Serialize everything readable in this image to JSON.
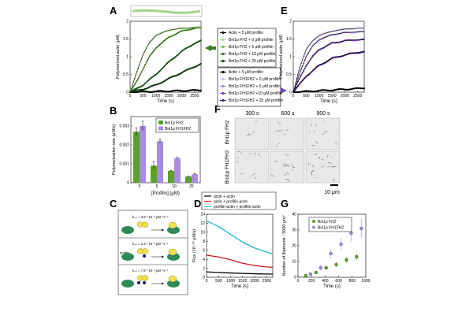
{
  "panels": {
    "A": "A",
    "B": "B",
    "C": "C",
    "D": "D",
    "E": "E",
    "F": "F",
    "G": "G"
  },
  "colors": {
    "green_dark": "#1b4d1b",
    "green_mid": "#2f7a2f",
    "green_light": "#6fbf4a",
    "green_pale": "#a8dc8c",
    "purple_dark": "#3c1a78",
    "purple_mid": "#6a3fb4",
    "purple_light": "#a48ad6",
    "purple_pale": "#cfc2ea",
    "bar_green": "#5aa02c",
    "bar_purple": "#a98be0",
    "cyan": "#19b6d6",
    "red": "#c8141e",
    "black": "#000000",
    "arrow_green": "#3a7d20",
    "arrow_purple": "#7b4bd0"
  },
  "legend_A": [
    {
      "label": "Actin + 5 μM profilin",
      "color": "#000000"
    },
    {
      "label": "Bni1p FH2 + 0 μM profilin",
      "color": "#a8dc8c"
    },
    {
      "label": "Bni1p FH2 + 5 μM profilin",
      "color": "#6fbf4a"
    },
    {
      "label": "Bni1p FH2 + 10 μM profilin",
      "color": "#2f7a2f"
    },
    {
      "label": "Bni1p FH2 + 25 μM profilin",
      "color": "#1b4d1b"
    }
  ],
  "legend_E": [
    {
      "label": "Actin + 5 μM profilin",
      "color": "#000000"
    },
    {
      "label": "Bni1p FH1FH2 + 0 μM profilin",
      "color": "#cfc2ea"
    },
    {
      "label": "Bni1p FH1FH2 + 5 μM profilin",
      "color": "#a48ad6"
    },
    {
      "label": "Bni1p FH1FH2 +10 μM profilin",
      "color": "#6a3fb4"
    },
    {
      "label": "Bni1p FH1FH2 + 25 μM profilin",
      "color": "#3c1a78"
    }
  ],
  "chart_data": [
    {
      "panel": "A",
      "type": "line",
      "xlabel": "Time (s)",
      "ylabel": "Polymerized actin (μM)",
      "xlim": [
        0,
        2750
      ],
      "ylim": [
        0,
        2
      ],
      "xticks": [
        "0",
        "500",
        "1000",
        "1500",
        "2000",
        "2500"
      ],
      "yticks": [
        "0",
        "0.5",
        "1",
        "1.5",
        "2"
      ],
      "series": [
        {
          "name": "Actin + 5 μM profilin",
          "x": [
            0,
            500,
            1000,
            1500,
            2000,
            2500,
            2750
          ],
          "y": [
            0,
            0.01,
            0.02,
            0.03,
            0.04,
            0.05,
            0.06
          ]
        },
        {
          "name": "Bni1p FH2 + 0 μM profilin",
          "x": [
            0,
            250,
            500,
            750,
            1000,
            1500,
            2000,
            2500,
            2750
          ],
          "y": [
            0,
            0.55,
            1.05,
            1.4,
            1.6,
            1.75,
            1.8,
            1.82,
            1.83
          ]
        },
        {
          "name": "Bni1p FH2 + 5 μM profilin",
          "x": [
            0,
            250,
            500,
            750,
            1000,
            1500,
            2000,
            2500,
            2750
          ],
          "y": [
            0,
            0.3,
            0.65,
            1.0,
            1.25,
            1.55,
            1.72,
            1.8,
            1.82
          ]
        },
        {
          "name": "Bni1p FH2 + 10 μM profilin",
          "x": [
            0,
            500,
            1000,
            1500,
            2000,
            2500,
            2750
          ],
          "y": [
            0,
            0.2,
            0.5,
            0.85,
            1.15,
            1.38,
            1.45
          ]
        },
        {
          "name": "Bni1p FH2 + 25 μM profilin",
          "x": [
            0,
            500,
            1000,
            1500,
            2000,
            2500,
            2750
          ],
          "y": [
            0,
            0.08,
            0.2,
            0.38,
            0.55,
            0.72,
            0.8
          ]
        }
      ]
    },
    {
      "panel": "B",
      "type": "bar",
      "xlabel": "[Profilin] (μM)",
      "ylabel": "Polymerization rate (μM/s)",
      "ylim": [
        0,
        0.0035
      ],
      "yticks": [
        "0",
        "0.001",
        "0.002",
        "0.003"
      ],
      "categories": [
        "0",
        "5",
        "10",
        "25"
      ],
      "series": [
        {
          "name": "Bni1p FH2",
          "values": [
            0.0027,
            0.0009,
            0.00063,
            0.00033
          ],
          "errors": [
            0.0002,
            0.0002,
            3e-05,
            3e-05
          ]
        },
        {
          "name": "Bni1p FH1FH2",
          "values": [
            0.003,
            0.0022,
            0.0013,
            0.00045
          ],
          "errors": [
            0.00025,
            0.0001,
            5e-05,
            3e-05
          ]
        }
      ]
    },
    {
      "panel": "D",
      "type": "line",
      "xlabel": "Time (s)",
      "ylabel": "Flux (10⁻¹⁰ μM/s)",
      "xlim": [
        0,
        2750
      ],
      "ylim": [
        0,
        14
      ],
      "xticks": [
        "0",
        "500",
        "1000",
        "1500",
        "2000",
        "2500"
      ],
      "yticks": [
        "0",
        "2",
        "4",
        "6",
        "8",
        "10",
        "12",
        "14"
      ],
      "series": [
        {
          "name": "actin + actin",
          "x": [
            0,
            500,
            1000,
            1500,
            2000,
            2500,
            2750
          ],
          "y": [
            1.2,
            1.05,
            0.95,
            0.85,
            0.78,
            0.72,
            0.7
          ]
        },
        {
          "name": "actin + profilin-actin",
          "x": [
            0,
            500,
            1000,
            1500,
            2000,
            2500,
            2750
          ],
          "y": [
            4.9,
            4.5,
            3.9,
            3.1,
            2.6,
            2.3,
            2.2
          ]
        },
        {
          "name": "profilin-actin + profilin-actin",
          "x": [
            0,
            500,
            1000,
            1500,
            2000,
            2500,
            2750
          ],
          "y": [
            12.5,
            11.3,
            9.5,
            7.8,
            6.5,
            5.6,
            5.2
          ]
        }
      ]
    },
    {
      "panel": "E",
      "type": "line",
      "xlabel": "Time (s)",
      "ylabel": "Polymerized actin (μM)",
      "xlim": [
        0,
        2750
      ],
      "ylim": [
        0,
        2
      ],
      "xticks": [
        "0",
        "500",
        "1000",
        "1500",
        "2000",
        "2500"
      ],
      "yticks": [
        "0",
        "0.5",
        "1",
        "1.5",
        "2"
      ],
      "series": [
        {
          "name": "Actin + 5 μM profilin",
          "x": [
            0,
            500,
            1000,
            1500,
            2000,
            2500,
            2750
          ],
          "y": [
            0,
            0.02,
            0.04,
            0.06,
            0.08,
            0.1,
            0.12
          ]
        },
        {
          "name": "Bni1p FH1FH2 + 0 μM profilin",
          "x": [
            0,
            250,
            500,
            750,
            1000,
            1500,
            2000,
            2500,
            2750
          ],
          "y": [
            0,
            0.7,
            1.2,
            1.45,
            1.6,
            1.72,
            1.78,
            1.8,
            1.8
          ]
        },
        {
          "name": "Bni1p FH1FH2 + 5 μM profilin",
          "x": [
            0,
            250,
            500,
            750,
            1000,
            1500,
            2000,
            2500,
            2750
          ],
          "y": [
            0,
            0.55,
            1.0,
            1.3,
            1.48,
            1.62,
            1.68,
            1.7,
            1.7
          ]
        },
        {
          "name": "Bni1p FH1FH2 +10 μM profilin",
          "x": [
            0,
            250,
            500,
            750,
            1000,
            1500,
            2000,
            2500,
            2750
          ],
          "y": [
            0,
            0.4,
            0.75,
            1.0,
            1.2,
            1.38,
            1.45,
            1.48,
            1.48
          ]
        },
        {
          "name": "Bni1p FH1FH2 + 25 μM profilin",
          "x": [
            0,
            500,
            1000,
            1500,
            2000,
            2500,
            2750
          ],
          "y": [
            0,
            0.45,
            0.75,
            0.95,
            1.05,
            1.12,
            1.14
          ]
        }
      ]
    },
    {
      "panel": "G",
      "type": "scatter",
      "xlabel": "Time (s)",
      "ylabel": "Number of filaments / 5000 μm²",
      "xlim": [
        0,
        1000
      ],
      "ylim": [
        0,
        40
      ],
      "xticks": [
        "0",
        "200",
        "400",
        "600",
        "800",
        "1000"
      ],
      "yticks": [
        "0",
        "10",
        "20",
        "30",
        "40"
      ],
      "series": [
        {
          "name": "Bni1p FH2",
          "x": [
            150,
            300,
            450,
            600,
            750,
            900
          ],
          "y": [
            1,
            3,
            6,
            8,
            11,
            13
          ],
          "errors": [
            1,
            1,
            1.5,
            1.5,
            2,
            2
          ]
        },
        {
          "name": "Bni1p FH1FH2",
          "x": [
            150,
            300,
            450,
            600,
            750,
            900
          ],
          "y": [
            2,
            6,
            15,
            21,
            28,
            31
          ],
          "errors": [
            1,
            2,
            3,
            4,
            5,
            6
          ]
        }
      ]
    }
  ],
  "panel_C": {
    "rates": [
      "k₊ₙ = 3.9 * 10⁻³ μM⁻¹s⁻¹",
      "k₊ₙ = 2.3 * 10⁻³ μM⁻¹s⁻¹",
      "k₊ₙ = 7.8 * 10⁻³ μM⁻¹s⁻¹"
    ],
    "label_profilin": "profilin"
  },
  "legend_D": [
    "actin + actin",
    "actin + profilin-actin",
    "profilin-actin + profilin-actin"
  ],
  "panel_F": {
    "cols": [
      "300 s",
      "600 s",
      "900 s"
    ],
    "rows": [
      "Bni1p FH2",
      "Bni1p FH1FH2"
    ],
    "scalebar": "10 μm"
  }
}
